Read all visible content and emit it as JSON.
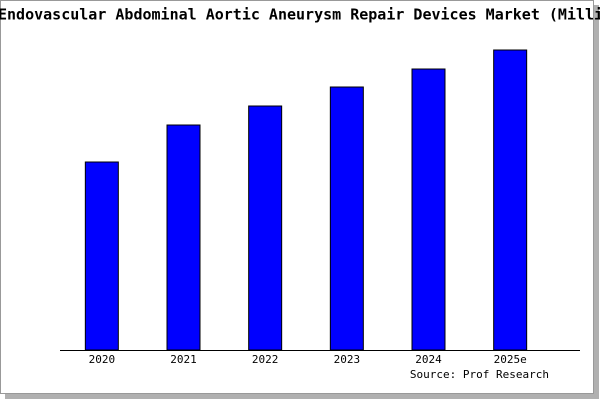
{
  "chart_data": {
    "type": "bar",
    "title": "Endovascular Abdominal Aortic Aneurysm Repair Devices Market (Milli",
    "categories": [
      "2020",
      "2021",
      "2022",
      "2023",
      "2024",
      "2025e"
    ],
    "values": [
      188,
      225,
      244,
      263,
      281,
      300
    ],
    "color": "#0000ff",
    "source": "Source: Prof Research"
  }
}
